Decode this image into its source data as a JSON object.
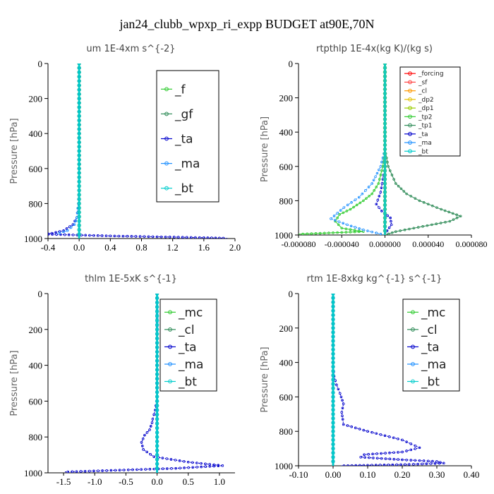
{
  "title": "jan24_clubb_wpxp_ri_expp  BUDGET at90E,70N",
  "chart_data": [
    {
      "type": "line",
      "title": "um  1E-4xm s^{-2}",
      "ylabel": "Pressure [hPa]",
      "xlim": [
        -0.4,
        2.0
      ],
      "ylim": [
        1000,
        0
      ],
      "xticks": [
        "-0.4",
        "0.0",
        "0.4",
        "0.8",
        "1.2",
        "1.6",
        "2.0"
      ],
      "yticks": [
        "0",
        "200",
        "400",
        "600",
        "800",
        "1000"
      ],
      "grid": false,
      "legend_position": "top-right",
      "series": [
        {
          "name": "_f",
          "color": "#33cc33",
          "x": [
            0,
            0,
            0,
            0,
            0,
            0
          ],
          "y": [
            0,
            200,
            400,
            600,
            800,
            1000
          ]
        },
        {
          "name": "_gf",
          "color": "#2e8b57",
          "x": [
            0,
            0,
            0,
            0,
            0,
            0
          ],
          "y": [
            0,
            200,
            400,
            600,
            800,
            1000
          ]
        },
        {
          "name": "_ta",
          "color": "#0000cc",
          "x": [
            0,
            0,
            0,
            -0.01,
            -0.03,
            -0.08,
            -0.2,
            -0.35,
            -0.45,
            0.4,
            1.0,
            1.6,
            1.9
          ],
          "y": [
            0,
            300,
            600,
            800,
            880,
            920,
            955,
            970,
            975,
            985,
            990,
            995,
            998
          ]
        },
        {
          "name": "_ma",
          "color": "#1e90ff",
          "x": [
            0,
            0,
            0,
            -0.01,
            -0.03,
            -0.06,
            -0.15,
            -0.3
          ],
          "y": [
            0,
            300,
            600,
            800,
            880,
            920,
            955,
            975
          ]
        },
        {
          "name": "_bt",
          "color": "#00cccc",
          "x": [
            0,
            0,
            0,
            0,
            0,
            0
          ],
          "y": [
            0,
            200,
            400,
            600,
            800,
            1000
          ]
        }
      ]
    },
    {
      "type": "line",
      "title": "rtpthlp  1E-4x(kg K)/(kg s)",
      "ylabel": "Pressure [hPa]",
      "xlim": [
        -8e-05,
        8e-05
      ],
      "ylim": [
        1000,
        0
      ],
      "xticks": [
        "-0.000080",
        "-0.000040",
        "0.000000",
        "0.000040",
        "0.000080"
      ],
      "yticks": [
        "0",
        "200",
        "400",
        "600",
        "800",
        "1000"
      ],
      "grid": false,
      "legend_position": "top-right",
      "series": [
        {
          "name": "_forcing",
          "color": "#ff0000",
          "x": [
            0,
            0,
            0,
            0,
            0,
            0
          ],
          "y": [
            0,
            200,
            400,
            600,
            800,
            1000
          ]
        },
        {
          "name": "_sf",
          "color": "#ff4444",
          "x": [
            0,
            0,
            0,
            0,
            0,
            0
          ],
          "y": [
            0,
            200,
            400,
            600,
            800,
            1000
          ]
        },
        {
          "name": "_cl",
          "color": "#ff9900",
          "x": [
            0,
            0,
            0,
            0,
            0,
            0
          ],
          "y": [
            0,
            200,
            400,
            600,
            800,
            1000
          ]
        },
        {
          "name": "_dp2",
          "color": "#e6c200",
          "x": [
            0,
            0,
            0,
            0,
            0,
            0
          ],
          "y": [
            0,
            200,
            400,
            600,
            800,
            1000
          ]
        },
        {
          "name": "_dp1",
          "color": "#99cc00",
          "x": [
            0,
            0,
            0,
            0,
            0,
            0
          ],
          "y": [
            0,
            200,
            400,
            600,
            800,
            1000
          ]
        },
        {
          "name": "_tp2",
          "color": "#33cc33",
          "x": [
            0,
            0,
            0,
            -2e-06,
            -6e-06,
            -1.2e-05,
            -2e-05,
            -3.2e-05,
            -4.2e-05,
            -4.6e-05,
            -4e-05,
            -2e-05,
            -8e-05
          ],
          "y": [
            0,
            300,
            500,
            600,
            700,
            760,
            800,
            850,
            880,
            920,
            960,
            980,
            995
          ]
        },
        {
          "name": "_tp1",
          "color": "#2e8b57",
          "x": [
            0,
            0,
            0,
            3e-06,
            1e-05,
            2e-05,
            3.2e-05,
            5.2e-05,
            7e-05,
            6e-05,
            3.5e-05,
            1e-05,
            0
          ],
          "y": [
            0,
            300,
            500,
            600,
            700,
            760,
            800,
            850,
            890,
            920,
            950,
            980,
            1000
          ]
        },
        {
          "name": "_ta",
          "color": "#0000cc",
          "x": [
            0,
            0,
            0,
            -4e-06,
            -8e-06,
            -3e-06,
            5e-06,
            6e-06,
            2e-06,
            0
          ],
          "y": [
            0,
            400,
            600,
            750,
            820,
            860,
            900,
            940,
            975,
            1000
          ]
        },
        {
          "name": "_ma",
          "color": "#1e90ff",
          "x": [
            0,
            0,
            -4e-06,
            -1.2e-05,
            -2.4e-05,
            -3.8e-05,
            -5e-05,
            -3.5e-05,
            -2e-05,
            0
          ],
          "y": [
            0,
            500,
            600,
            700,
            780,
            840,
            905,
            940,
            970,
            1000
          ]
        },
        {
          "name": "_bt",
          "color": "#00cccc",
          "x": [
            0,
            0,
            0,
            0,
            0,
            0
          ],
          "y": [
            0,
            200,
            400,
            600,
            800,
            1000
          ]
        }
      ]
    },
    {
      "type": "line",
      "title": "thlm  1E-5xK s^{-1}",
      "ylabel": "Pressure [hPa]",
      "xlim": [
        -1.75,
        1.25
      ],
      "ylim": [
        1000,
        0
      ],
      "xticks": [
        "-1.5",
        "-1.0",
        "-0.5",
        "0.0",
        "0.5",
        "1.0"
      ],
      "yticks": [
        "0",
        "200",
        "400",
        "600",
        "800",
        "1000"
      ],
      "grid": false,
      "legend_position": "top-right",
      "series": [
        {
          "name": "_mc",
          "color": "#33cc33",
          "x": [
            0,
            0,
            0,
            0,
            0,
            0
          ],
          "y": [
            0,
            200,
            400,
            600,
            800,
            1000
          ]
        },
        {
          "name": "_cl",
          "color": "#2e8b57",
          "x": [
            0,
            0,
            0,
            0,
            0,
            0
          ],
          "y": [
            0,
            200,
            400,
            600,
            800,
            1000
          ]
        },
        {
          "name": "_ta",
          "color": "#0000cc",
          "x": [
            0,
            0,
            0,
            -0.01,
            -0.03,
            -0.07,
            -0.08,
            -0.12,
            -0.2,
            -0.25,
            -0.22,
            -0.05,
            0.5,
            1.05,
            0.3,
            -0.6,
            -1.5
          ],
          "y": [
            0,
            300,
            500,
            600,
            650,
            700,
            720,
            760,
            790,
            830,
            870,
            910,
            940,
            960,
            975,
            985,
            995
          ]
        },
        {
          "name": "_ma",
          "color": "#1e90ff",
          "x": [
            0,
            0,
            0,
            0,
            0,
            0
          ],
          "y": [
            0,
            200,
            400,
            600,
            800,
            1000
          ]
        },
        {
          "name": "_bt",
          "color": "#00cccc",
          "x": [
            0,
            0,
            0,
            0,
            0,
            0
          ],
          "y": [
            0,
            200,
            400,
            600,
            800,
            1000
          ]
        }
      ]
    },
    {
      "type": "line",
      "title": "rtm  1E-8xkg kg^{-1} s^{-1}",
      "ylabel": "Pressure [hPa]",
      "xlim": [
        -0.1,
        0.4
      ],
      "ylim": [
        1000,
        0
      ],
      "xticks": [
        "-0.10",
        "0.00",
        "0.10",
        "0.20",
        "0.30",
        "0.40"
      ],
      "yticks": [
        "0",
        "200",
        "400",
        "600",
        "800",
        "1000"
      ],
      "grid": false,
      "legend_position": "top-right",
      "series": [
        {
          "name": "_mc",
          "color": "#33cc33",
          "x": [
            0,
            0,
            0,
            0,
            0,
            0
          ],
          "y": [
            0,
            200,
            400,
            600,
            800,
            1000
          ]
        },
        {
          "name": "_cl",
          "color": "#2e8b57",
          "x": [
            0,
            0,
            0,
            0,
            0,
            0
          ],
          "y": [
            0,
            200,
            400,
            600,
            800,
            1000
          ]
        },
        {
          "name": "_ta",
          "color": "#0000cc",
          "x": [
            0,
            0,
            0.003,
            0.01,
            0.02,
            0.03,
            0.025,
            0.028,
            0.03,
            0.1,
            0.2,
            0.25,
            0.2,
            0.09,
            0.08,
            0.2,
            0.3,
            0.32,
            0.22,
            0.1,
            0.02
          ],
          "y": [
            0,
            400,
            480,
            530,
            580,
            640,
            690,
            730,
            760,
            800,
            850,
            895,
            920,
            935,
            950,
            965,
            975,
            985,
            992,
            997,
            1000
          ]
        },
        {
          "name": "_ma",
          "color": "#1e90ff",
          "x": [
            0,
            0,
            0,
            0,
            0,
            0
          ],
          "y": [
            0,
            200,
            400,
            600,
            800,
            1000
          ]
        },
        {
          "name": "_bt",
          "color": "#00cccc",
          "x": [
            0,
            0,
            0,
            0,
            0,
            0
          ],
          "y": [
            0,
            200,
            400,
            600,
            800,
            1000
          ]
        }
      ]
    }
  ]
}
